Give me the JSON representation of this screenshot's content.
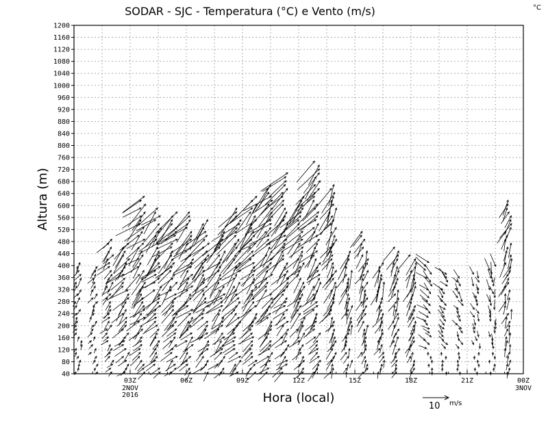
{
  "chart_data": {
    "type": "wind-barb-profile",
    "title": "SODAR - SJC - Temperatura (°C) e Vento (m/s)",
    "corner_unit": "°C",
    "xlabel": "Hora (local)",
    "ylabel": "Altura (m)",
    "ylim": [
      40,
      1200
    ],
    "yticks": [
      40,
      80,
      120,
      160,
      200,
      240,
      280,
      320,
      360,
      400,
      440,
      480,
      520,
      560,
      600,
      640,
      680,
      720,
      760,
      800,
      840,
      880,
      920,
      960,
      1000,
      1040,
      1080,
      1120,
      1160,
      1200
    ],
    "xlim_hours": [
      -3,
      21
    ],
    "xticks": [
      {
        "hour": 0,
        "label": "03Z",
        "sub": [
          "2NOV",
          "2016"
        ]
      },
      {
        "hour": 3,
        "label": "06Z",
        "sub": []
      },
      {
        "hour": 6,
        "label": "09Z",
        "sub": []
      },
      {
        "hour": 9,
        "label": "12Z",
        "sub": []
      },
      {
        "hour": 12,
        "label": "15Z",
        "sub": []
      },
      {
        "hour": 15,
        "label": "18Z",
        "sub": []
      },
      {
        "hour": 18,
        "label": "21Z",
        "sub": []
      },
      {
        "hour": 21,
        "label": "00Z",
        "sub": [
          "3NOV"
        ]
      }
    ],
    "grid": true,
    "legend": {
      "value": "10",
      "unit": "m/s",
      "position": "bottom-right"
    },
    "profiles": [
      {
        "hour": -2.75,
        "top": 420,
        "speed": 3,
        "dir_deg": 30
      },
      {
        "hour": -1.9,
        "top": 400,
        "speed": 3,
        "dir_deg": 35
      },
      {
        "hour": -1.05,
        "top": 490,
        "speed": 5,
        "dir_deg": 40
      },
      {
        "hour": -0.2,
        "top": 480,
        "speed": 8,
        "dir_deg": 45
      },
      {
        "hour": 0.65,
        "top": 640,
        "speed": 9,
        "dir_deg": 45
      },
      {
        "hour": 1.5,
        "top": 600,
        "speed": 9,
        "dir_deg": 45
      },
      {
        "hour": 2.35,
        "top": 590,
        "speed": 9,
        "dir_deg": 45
      },
      {
        "hour": 3.2,
        "top": 580,
        "speed": 9,
        "dir_deg": 45
      },
      {
        "hour": 4.05,
        "top": 560,
        "speed": 9,
        "dir_deg": 45
      },
      {
        "hour": 4.9,
        "top": 520,
        "speed": 9,
        "dir_deg": 45
      },
      {
        "hour": 5.75,
        "top": 600,
        "speed": 10,
        "dir_deg": 45
      },
      {
        "hour": 6.6,
        "top": 640,
        "speed": 10,
        "dir_deg": 45
      },
      {
        "hour": 7.45,
        "top": 680,
        "speed": 10,
        "dir_deg": 45
      },
      {
        "hour": 8.3,
        "top": 720,
        "speed": 10,
        "dir_deg": 45
      },
      {
        "hour": 9.15,
        "top": 640,
        "speed": 9,
        "dir_deg": 40
      },
      {
        "hour": 10.0,
        "top": 760,
        "speed": 9,
        "dir_deg": 40
      },
      {
        "hour": 10.85,
        "top": 680,
        "speed": 8,
        "dir_deg": 30
      },
      {
        "hour": 11.7,
        "top": 460,
        "speed": 6,
        "dir_deg": 20
      },
      {
        "hour": 12.55,
        "top": 520,
        "speed": 6,
        "dir_deg": 25
      },
      {
        "hour": 13.4,
        "top": 420,
        "speed": 6,
        "dir_deg": 25
      },
      {
        "hour": 14.25,
        "top": 470,
        "speed": 6,
        "dir_deg": 25
      },
      {
        "hour": 15.1,
        "top": 440,
        "speed": 6,
        "dir_deg": 25
      },
      {
        "hour": 15.95,
        "top": 420,
        "speed": 5,
        "dir_deg": 130
      },
      {
        "hour": 16.8,
        "top": 380,
        "speed": 4,
        "dir_deg": 140
      },
      {
        "hour": 17.65,
        "top": 360,
        "speed": 3,
        "dir_deg": 150
      },
      {
        "hour": 18.5,
        "top": 380,
        "speed": 3,
        "dir_deg": 160
      },
      {
        "hour": 19.35,
        "top": 400,
        "speed": 4,
        "dir_deg": 170
      },
      {
        "hour": 20.2,
        "top": 620,
        "speed": 6,
        "dir_deg": 20
      }
    ]
  }
}
